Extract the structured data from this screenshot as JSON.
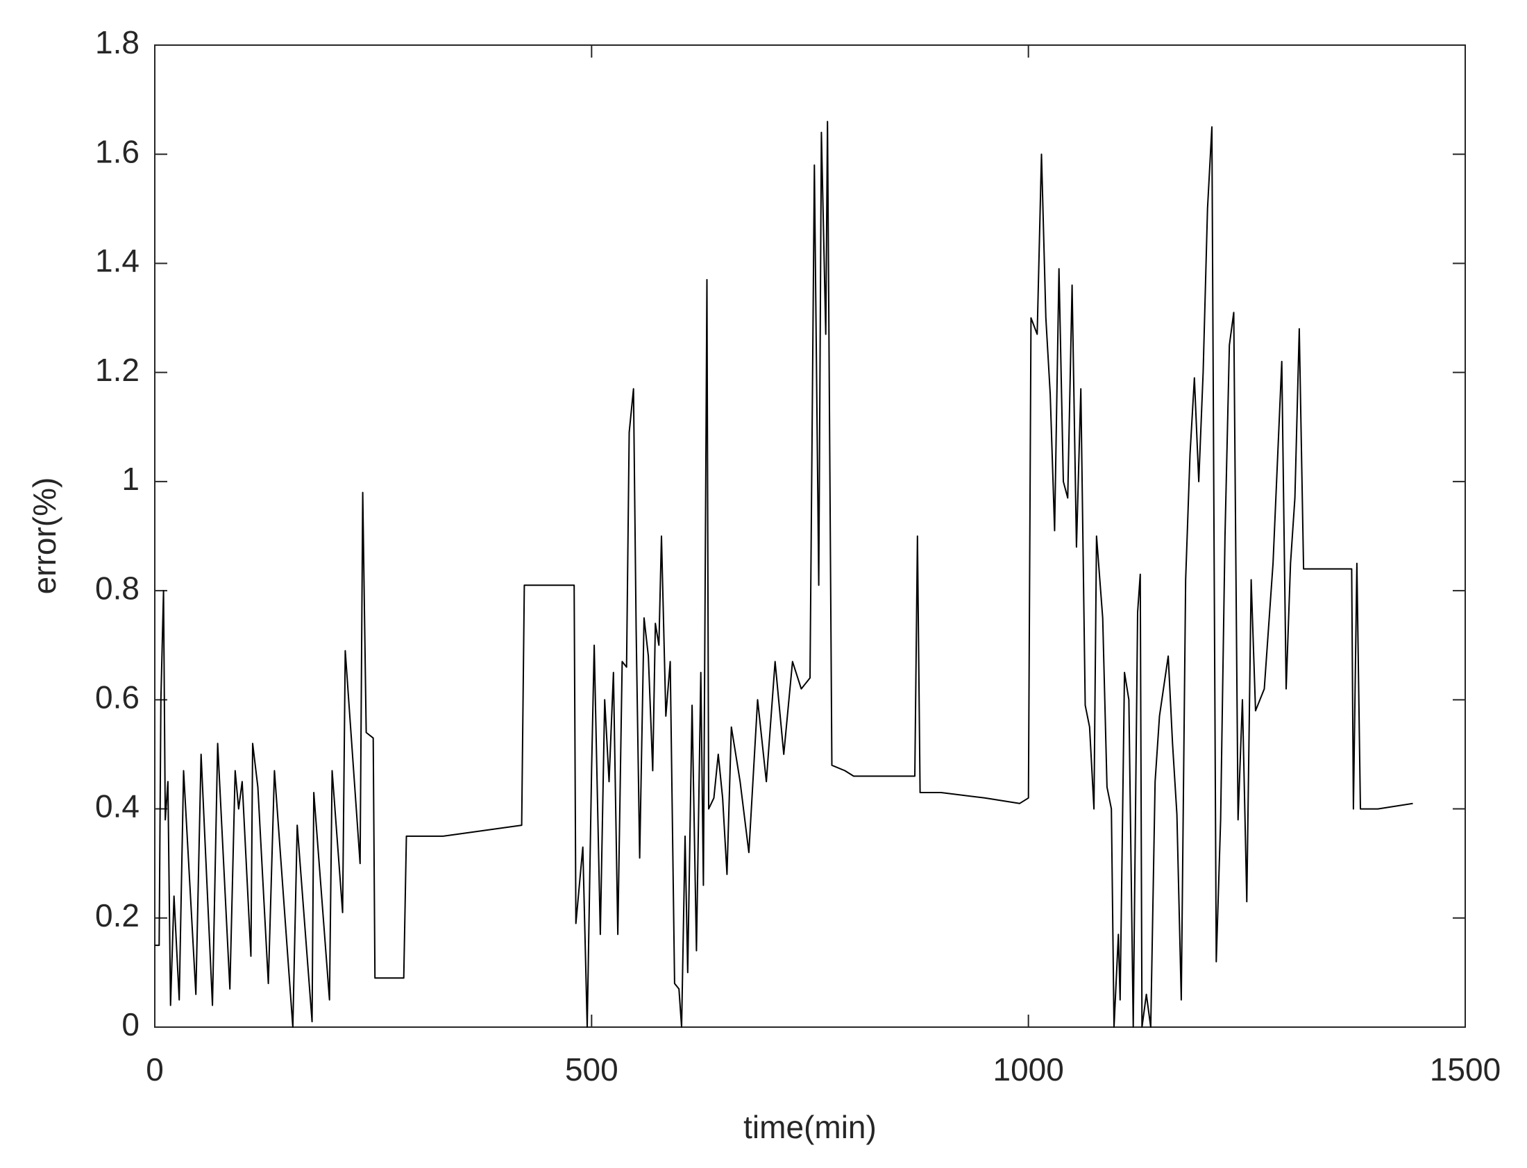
{
  "chart_data": {
    "type": "line",
    "xlabel": "time(min)",
    "ylabel": "error(%)",
    "xlim": [
      0,
      1500
    ],
    "xticks": [
      0,
      500,
      1000,
      1500
    ],
    "ylim": [
      0,
      1.8
    ],
    "yticks": [
      0,
      0.2,
      0.4,
      0.6,
      0.8,
      1,
      1.2,
      1.4,
      1.6,
      1.8
    ],
    "grid": false,
    "series": [
      {
        "color": "#000000",
        "x": [
          0,
          5,
          7,
          10,
          12,
          15,
          18,
          22,
          28,
          33,
          47,
          53,
          66,
          72,
          86,
          92,
          96,
          100,
          110,
          112,
          118,
          130,
          137,
          158,
          163,
          180,
          182,
          200,
          203,
          215,
          218,
          235,
          238,
          242,
          250,
          252,
          285,
          288,
          330,
          420,
          423,
          480,
          482,
          490,
          495,
          500,
          503,
          510,
          515,
          520,
          525,
          530,
          535,
          540,
          543,
          548,
          551,
          555,
          560,
          565,
          570,
          573,
          577,
          580,
          585,
          590,
          595,
          600,
          603,
          607,
          610,
          615,
          620,
          625,
          628,
          632,
          634,
          640,
          645,
          650,
          655,
          660,
          670,
          680,
          690,
          700,
          710,
          720,
          730,
          740,
          750,
          755,
          760,
          763,
          768,
          770,
          775,
          790,
          800,
          850,
          870,
          873,
          876,
          900,
          950,
          990,
          1000,
          1003,
          1010,
          1015,
          1020,
          1025,
          1030,
          1035,
          1040,
          1045,
          1050,
          1055,
          1060,
          1065,
          1070,
          1075,
          1078,
          1085,
          1090,
          1095,
          1098,
          1103,
          1105,
          1110,
          1115,
          1120,
          1125,
          1128,
          1130,
          1135,
          1140,
          1145,
          1150,
          1160,
          1165,
          1170,
          1175,
          1180,
          1185,
          1190,
          1195,
          1200,
          1205,
          1210,
          1215,
          1220,
          1225,
          1230,
          1235,
          1240,
          1245,
          1250,
          1255,
          1260,
          1270,
          1280,
          1290,
          1295,
          1300,
          1305,
          1310,
          1315,
          1370,
          1372,
          1376,
          1380,
          1400,
          1440
        ],
        "values": [
          0.15,
          0.15,
          0.6,
          0.8,
          0.38,
          0.45,
          0.04,
          0.24,
          0.05,
          0.47,
          0.06,
          0.5,
          0.04,
          0.52,
          0.07,
          0.47,
          0.4,
          0.45,
          0.13,
          0.52,
          0.44,
          0.08,
          0.47,
          0,
          0.37,
          0.01,
          0.43,
          0.05,
          0.47,
          0.21,
          0.69,
          0.3,
          0.98,
          0.54,
          0.53,
          0.09,
          0.09,
          0.35,
          0.35,
          0.37,
          0.81,
          0.81,
          0.19,
          0.33,
          0,
          0.47,
          0.7,
          0.17,
          0.6,
          0.45,
          0.65,
          0.17,
          0.67,
          0.66,
          1.09,
          1.17,
          0.73,
          0.31,
          0.75,
          0.68,
          0.47,
          0.74,
          0.7,
          0.9,
          0.57,
          0.67,
          0.08,
          0.07,
          0,
          0.35,
          0.1,
          0.59,
          0.14,
          0.65,
          0.26,
          1.37,
          0.4,
          0.42,
          0.5,
          0.42,
          0.28,
          0.55,
          0.45,
          0.32,
          0.6,
          0.45,
          0.67,
          0.5,
          0.67,
          0.62,
          0.64,
          1.58,
          0.81,
          1.64,
          1.27,
          1.66,
          0.48,
          0.47,
          0.46,
          0.46,
          0.46,
          0.9,
          0.43,
          0.43,
          0.42,
          0.41,
          0.42,
          1.3,
          1.27,
          1.6,
          1.3,
          1.16,
          0.91,
          1.39,
          1,
          0.97,
          1.36,
          0.88,
          1.17,
          0.59,
          0.55,
          0.4,
          0.9,
          0.75,
          0.44,
          0.4,
          0,
          0.17,
          0.05,
          0.65,
          0.6,
          0,
          0.76,
          0.83,
          0,
          0.06,
          0,
          0.45,
          0.57,
          0.68,
          0.52,
          0.39,
          0.05,
          0.82,
          1.05,
          1.19,
          1,
          1.2,
          1.5,
          1.65,
          0.12,
          0.38,
          0.9,
          1.25,
          1.31,
          0.38,
          0.6,
          0.23,
          0.82,
          0.58,
          0.62,
          0.85,
          1.22,
          0.62,
          0.85,
          0.97,
          1.28,
          0.84,
          0.84,
          0.4,
          0.85,
          0.4,
          0.4,
          0.41
        ]
      }
    ]
  }
}
